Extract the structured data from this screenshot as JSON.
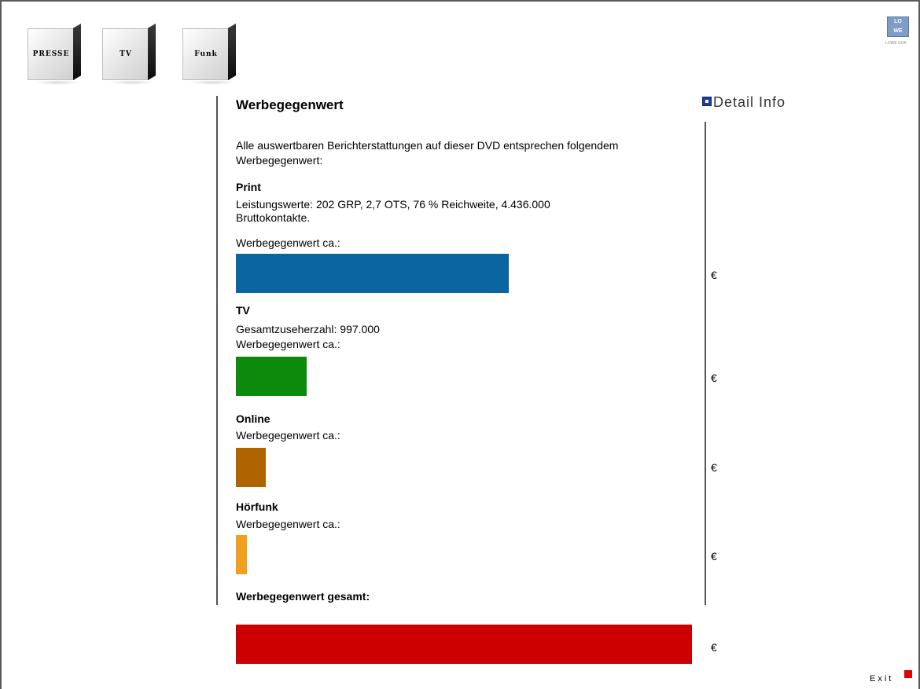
{
  "nav": {
    "cubes": [
      {
        "label": "PRESSE"
      },
      {
        "label": "TV"
      },
      {
        "label": "Funk"
      }
    ]
  },
  "logo": {
    "line1": "LO",
    "line2": "WE",
    "sub": "LOWE GGK"
  },
  "page": {
    "title": "Werbegegenwert",
    "intro": "Alle auswertbaren Berichterstattungen auf dieser DVD entsprechen folgendem Werbegegenwert:",
    "value_prefix": "Werbegegenwert ca.:",
    "currency": "€",
    "total_label": "Werbegegenwert gesamt:"
  },
  "sections": [
    {
      "title": "Print",
      "details": "Leistungswerte: 202 GRP, 2,7 OTS, 76 % Reichweite, 4.436.000 Bruttokontakte.",
      "color": "#0a64a0"
    },
    {
      "title": "TV",
      "details": "Gesamtzuseherzahl: 997.000",
      "color": "#0b8a0b"
    },
    {
      "title": "Online",
      "details": "",
      "color": "#b06400"
    },
    {
      "title": "Hörfunk",
      "details": "",
      "color": "#f0a020"
    }
  ],
  "total": {
    "color": "#cc0000"
  },
  "detail_info": {
    "label": "Detail Info"
  },
  "exit": {
    "label": "Exit"
  }
}
